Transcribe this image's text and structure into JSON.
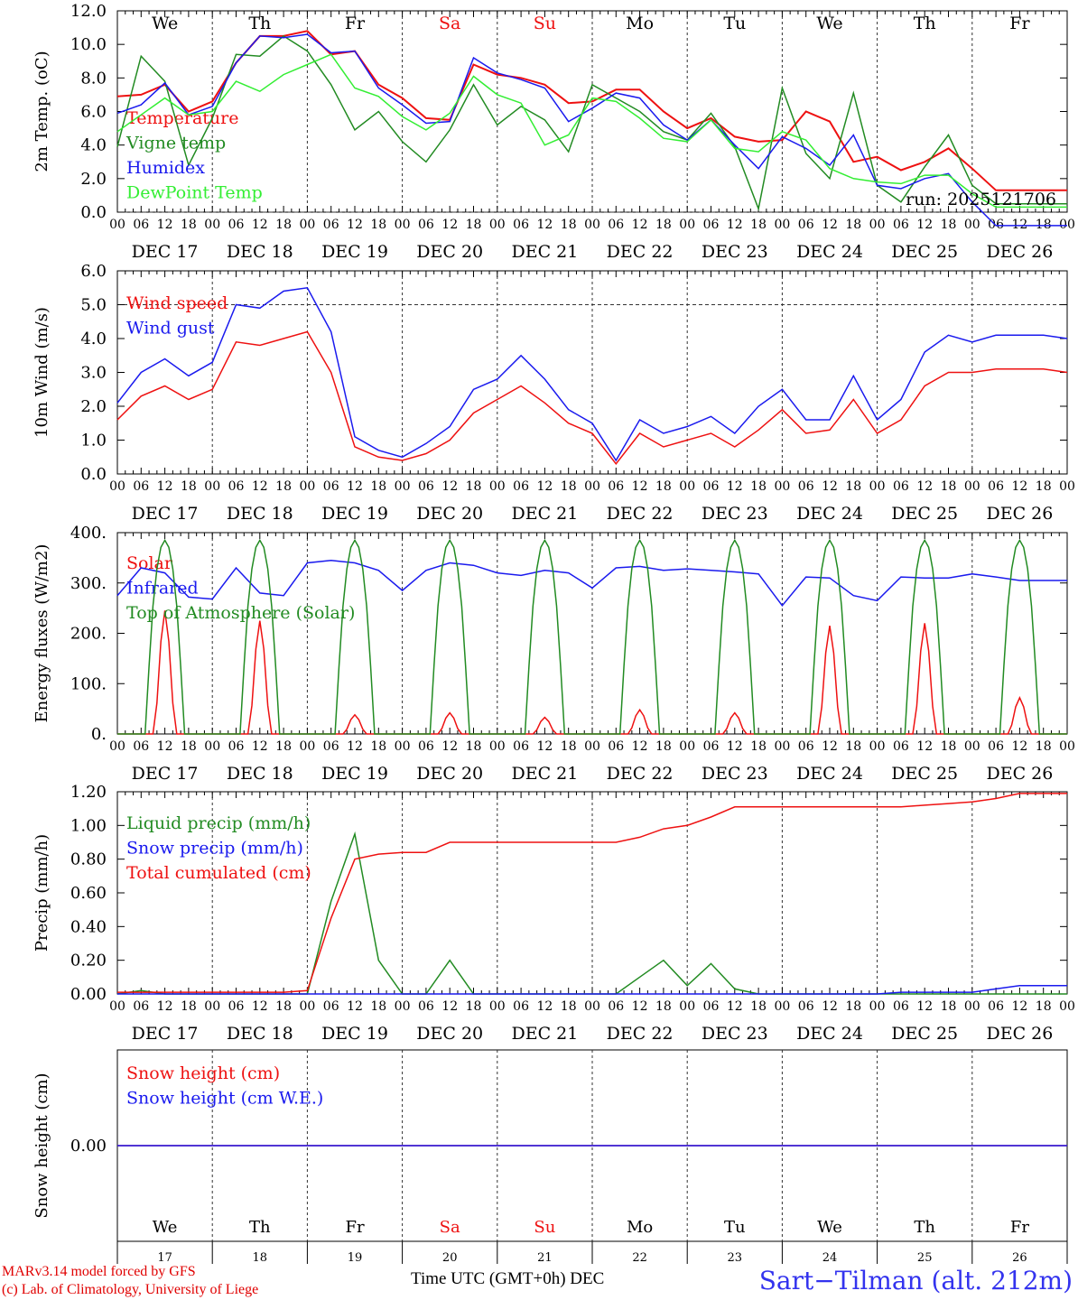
{
  "run_label": "run: 2025121706",
  "station": "Sart−Tilman (alt. 212m)",
  "credits": [
    "MARv3.14 model forced by GFS",
    "(c) Lab. of Climatology, University of Liege"
  ],
  "x_axis_title": "Time UTC (GMT+0h)",
  "month_label": "DEC",
  "hour_ticks": [
    "00",
    "06",
    "12",
    "18"
  ],
  "day_dates": [
    "DEC 17",
    "DEC 18",
    "DEC 19",
    "DEC 20",
    "DEC 21",
    "DEC 22",
    "DEC 23",
    "DEC 24",
    "DEC 25",
    "DEC 26"
  ],
  "day_numbers": [
    "17",
    "18",
    "19",
    "20",
    "21",
    "22",
    "23",
    "24",
    "25",
    "26"
  ],
  "weekdays": [
    "We",
    "Th",
    "Fr",
    "Sa",
    "Su",
    "Mo",
    "Tu",
    "We",
    "Th",
    "Fr"
  ],
  "colors": {
    "red": "#ee1111",
    "darkgreen": "#228b22",
    "blue": "#1a1aee",
    "lightgreen": "#33ee33",
    "weekend": "#ee1111",
    "weekday": "#000000"
  },
  "chart_data": [
    {
      "type": "line",
      "ylabel": "2m Temp. (oC)",
      "ylim": [
        0,
        12
      ],
      "yticks": [
        "0.0",
        "2.0",
        "4.0",
        "6.0",
        "8.0",
        "10.0",
        "12.0"
      ],
      "ref_line": 0,
      "x_hours": [
        0,
        6,
        12,
        18,
        24,
        30,
        36,
        42,
        48,
        54,
        60,
        66,
        72,
        78,
        84,
        90,
        96,
        102,
        108,
        114,
        120,
        126,
        132,
        138,
        144,
        150,
        156,
        162,
        168,
        174,
        180,
        186,
        192,
        198,
        204,
        210,
        216,
        222,
        228,
        234,
        240
      ],
      "series": [
        {
          "name": "Temperature",
          "color_key": "red",
          "values": [
            6.9,
            7.0,
            7.6,
            6.0,
            6.6,
            8.9,
            10.5,
            10.5,
            10.8,
            9.4,
            9.6,
            7.6,
            6.8,
            5.6,
            5.5,
            8.8,
            8.2,
            8.0,
            7.6,
            6.5,
            6.6,
            7.3,
            7.3,
            6.0,
            5.0,
            5.6,
            4.5,
            4.2,
            4.3,
            6.0,
            5.4,
            3.0,
            3.3,
            2.5,
            3.0,
            3.8,
            2.6,
            1.3,
            1.3,
            1.3,
            1.3
          ]
        },
        {
          "name": "Vigne temp",
          "color_key": "darkgreen",
          "values": [
            3.9,
            9.3,
            7.8,
            2.8,
            5.6,
            9.4,
            9.3,
            10.5,
            9.6,
            7.6,
            4.9,
            6.0,
            4.2,
            3.0,
            4.9,
            7.6,
            5.2,
            6.3,
            5.5,
            3.6,
            7.6,
            6.8,
            6.0,
            4.8,
            4.3,
            5.9,
            3.9,
            0.2,
            7.4,
            3.5,
            2.0,
            7.1,
            1.6,
            0.6,
            2.7,
            4.6,
            1.6,
            0.5,
            0.5,
            0.5,
            0.5
          ]
        },
        {
          "name": "Humidex",
          "color_key": "blue",
          "values": [
            5.9,
            6.4,
            7.7,
            5.8,
            6.3,
            8.9,
            10.5,
            10.4,
            10.6,
            9.5,
            9.6,
            7.4,
            6.4,
            5.3,
            5.4,
            9.2,
            8.3,
            7.9,
            7.4,
            5.4,
            6.2,
            7.1,
            6.8,
            5.2,
            4.3,
            5.5,
            4.0,
            2.6,
            4.5,
            3.8,
            2.8,
            4.6,
            1.6,
            1.4,
            2.0,
            2.3,
            0.6,
            -0.8,
            -0.8,
            -0.8,
            -0.8
          ]
        },
        {
          "name": "DewPoint Temp",
          "color_key": "lightgreen",
          "values": [
            4.8,
            5.8,
            6.8,
            5.8,
            6.0,
            7.8,
            7.2,
            8.2,
            8.8,
            9.4,
            7.4,
            6.9,
            5.7,
            4.9,
            5.9,
            8.1,
            7.0,
            6.5,
            4.0,
            4.6,
            6.8,
            6.6,
            5.6,
            4.4,
            4.2,
            5.5,
            3.8,
            3.6,
            4.8,
            4.3,
            2.6,
            2.0,
            1.8,
            1.7,
            2.2,
            2.2,
            1.1,
            0.3,
            0.3,
            0.3,
            0.3
          ]
        }
      ]
    },
    {
      "type": "line",
      "ylabel": "10m Wind (m/s)",
      "ylim": [
        0,
        6
      ],
      "yticks": [
        "0.0",
        "1.0",
        "2.0",
        "3.0",
        "4.0",
        "5.0",
        "6.0"
      ],
      "ref_line": 5,
      "x_hours": [
        0,
        6,
        12,
        18,
        24,
        30,
        36,
        42,
        48,
        54,
        60,
        66,
        72,
        78,
        84,
        90,
        96,
        102,
        108,
        114,
        120,
        126,
        132,
        138,
        144,
        150,
        156,
        162,
        168,
        174,
        180,
        186,
        192,
        198,
        204,
        210,
        216,
        222,
        228,
        234,
        240
      ],
      "series": [
        {
          "name": "Wind speed",
          "color_key": "red",
          "values": [
            1.6,
            2.3,
            2.6,
            2.2,
            2.5,
            3.9,
            3.8,
            4.0,
            4.2,
            3.0,
            0.8,
            0.5,
            0.4,
            0.6,
            1.0,
            1.8,
            2.2,
            2.6,
            2.1,
            1.5,
            1.2,
            0.3,
            1.2,
            0.8,
            1.0,
            1.2,
            0.8,
            1.3,
            1.9,
            1.2,
            1.3,
            2.2,
            1.2,
            1.6,
            2.6,
            3.0,
            3.0,
            3.1,
            3.1,
            3.1,
            3.0
          ]
        },
        {
          "name": "Wind gust",
          "color_key": "blue",
          "values": [
            2.1,
            3.0,
            3.4,
            2.9,
            3.3,
            5.0,
            4.9,
            5.4,
            5.5,
            4.2,
            1.1,
            0.7,
            0.5,
            0.9,
            1.4,
            2.5,
            2.8,
            3.5,
            2.8,
            1.9,
            1.5,
            0.4,
            1.6,
            1.2,
            1.4,
            1.7,
            1.2,
            2.0,
            2.5,
            1.6,
            1.6,
            2.9,
            1.6,
            2.2,
            3.6,
            4.1,
            3.9,
            4.1,
            4.1,
            4.1,
            4.0
          ]
        }
      ]
    },
    {
      "type": "line",
      "ylabel": "Energy fluxes (W/m2)",
      "ylim": [
        0,
        400
      ],
      "yticks": [
        "0.",
        "100.",
        "200.",
        "300.",
        "400."
      ],
      "ref_line": null,
      "day_peaks": {
        "solar": [
          245,
          225,
          38,
          42,
          33,
          48,
          42,
          215,
          220,
          72
        ],
        "top_of_atmosphere": [
          385,
          385,
          385,
          385,
          385,
          385,
          385,
          385,
          385,
          385
        ]
      },
      "x_hours": [
        0,
        6,
        12,
        18,
        24,
        30,
        36,
        42,
        48,
        54,
        60,
        66,
        72,
        78,
        84,
        90,
        96,
        102,
        108,
        114,
        120,
        126,
        132,
        138,
        144,
        150,
        156,
        162,
        168,
        174,
        180,
        186,
        192,
        198,
        204,
        210,
        216,
        222,
        228,
        234,
        240
      ],
      "series": [
        {
          "name": "Solar",
          "color_key": "red"
        },
        {
          "name": "Infrared",
          "color_key": "blue",
          "values": [
            275,
            330,
            320,
            272,
            268,
            330,
            280,
            275,
            340,
            345,
            340,
            325,
            285,
            325,
            340,
            335,
            320,
            315,
            325,
            320,
            290,
            330,
            333,
            325,
            328,
            325,
            322,
            318,
            255,
            312,
            310,
            275,
            265,
            312,
            310,
            310,
            318,
            312,
            305,
            305,
            305
          ]
        },
        {
          "name": "Top of Atmosphere (Solar)",
          "color_key": "darkgreen"
        }
      ]
    },
    {
      "type": "line",
      "ylabel": "Precip (mm/h)",
      "ylim": [
        0,
        1.2
      ],
      "yticks": [
        "0.00",
        "0.20",
        "0.40",
        "0.60",
        "0.80",
        "1.00",
        "1.20"
      ],
      "ref_line": null,
      "x_hours": [
        0,
        6,
        12,
        18,
        24,
        30,
        36,
        42,
        48,
        54,
        60,
        66,
        72,
        78,
        84,
        90,
        96,
        102,
        108,
        114,
        120,
        126,
        132,
        138,
        144,
        150,
        156,
        162,
        168,
        174,
        180,
        186,
        192,
        198,
        204,
        210,
        216,
        222,
        228,
        234,
        240
      ],
      "series": [
        {
          "name": "Liquid precip (mm/h)",
          "color_key": "darkgreen",
          "values": [
            0,
            0.02,
            0,
            0,
            0,
            0,
            0,
            0,
            0,
            0.55,
            0.95,
            0.2,
            0,
            0,
            0.2,
            0,
            0,
            0,
            0,
            0,
            0,
            0,
            0.1,
            0.2,
            0.05,
            0.18,
            0.03,
            0,
            0,
            0,
            0,
            0,
            0,
            0,
            0,
            0,
            0,
            0,
            0,
            0,
            0
          ]
        },
        {
          "name": "Snow precip (mm/h)",
          "color_key": "blue",
          "values": [
            0,
            0,
            0,
            0,
            0,
            0,
            0,
            0,
            0,
            0,
            0,
            0,
            0,
            0,
            0,
            0,
            0,
            0,
            0,
            0,
            0,
            0,
            0,
            0,
            0,
            0,
            0,
            0,
            0,
            0,
            0,
            0,
            0,
            0.01,
            0.01,
            0.01,
            0.01,
            0.03,
            0.05,
            0.05,
            0.05
          ]
        },
        {
          "name": "Total cumulated (cm)",
          "color_key": "red",
          "values": [
            0.01,
            0.01,
            0.01,
            0.01,
            0.01,
            0.01,
            0.01,
            0.01,
            0.02,
            0.45,
            0.8,
            0.83,
            0.84,
            0.84,
            0.9,
            0.9,
            0.9,
            0.9,
            0.9,
            0.9,
            0.9,
            0.9,
            0.93,
            0.98,
            1.0,
            1.05,
            1.11,
            1.11,
            1.11,
            1.11,
            1.11,
            1.11,
            1.11,
            1.11,
            1.12,
            1.13,
            1.14,
            1.16,
            1.19,
            1.19,
            1.19
          ]
        }
      ]
    },
    {
      "type": "line",
      "ylabel": "Snow height (cm)",
      "ylim": [
        -1,
        1
      ],
      "yticks": [
        "0.00"
      ],
      "ref_line": null,
      "x_hours": [
        0,
        240
      ],
      "series": [
        {
          "name": "Snow height (cm)",
          "color_key": "red",
          "values": [
            0,
            0
          ]
        },
        {
          "name": "Snow height (cm W.E.)",
          "color_key": "blue",
          "values": [
            0,
            0
          ]
        }
      ]
    }
  ]
}
